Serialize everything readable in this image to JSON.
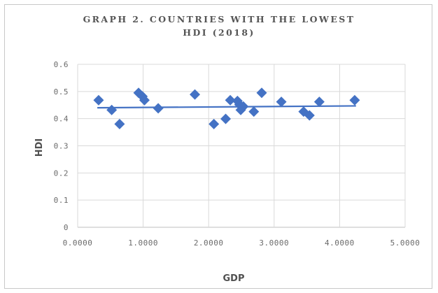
{
  "chart_data": {
    "type": "scatter",
    "title_lines": [
      "GRAPH 2. COUNTRIES WITH THE LOWEST",
      "HDI (2018)"
    ],
    "xlabel": "GDP",
    "ylabel": "HDI",
    "xlim": [
      0,
      5
    ],
    "ylim": [
      0,
      0.6
    ],
    "x_ticks": [
      "0.0000",
      "1.0000",
      "2.0000",
      "3.0000",
      "4.0000",
      "5.0000"
    ],
    "y_ticks": [
      "0",
      "0.1",
      "0.2",
      "0.3",
      "0.4",
      "0.5",
      "0.6"
    ],
    "grid": "horizontal and vertical",
    "marker_color": "#4472c4",
    "trendline": {
      "type": "linear",
      "x0": 0.3,
      "y0": 0.44,
      "x1": 4.25,
      "y1": 0.447
    },
    "points": [
      {
        "x": 0.32,
        "y": 0.468
      },
      {
        "x": 0.52,
        "y": 0.432
      },
      {
        "x": 0.64,
        "y": 0.38
      },
      {
        "x": 0.93,
        "y": 0.495
      },
      {
        "x": 0.99,
        "y": 0.482
      },
      {
        "x": 1.02,
        "y": 0.468
      },
      {
        "x": 1.23,
        "y": 0.438
      },
      {
        "x": 1.79,
        "y": 0.489
      },
      {
        "x": 2.08,
        "y": 0.38
      },
      {
        "x": 2.26,
        "y": 0.399
      },
      {
        "x": 2.33,
        "y": 0.468
      },
      {
        "x": 2.44,
        "y": 0.465
      },
      {
        "x": 2.47,
        "y": 0.452
      },
      {
        "x": 2.49,
        "y": 0.432
      },
      {
        "x": 2.53,
        "y": 0.445
      },
      {
        "x": 2.69,
        "y": 0.426
      },
      {
        "x": 2.81,
        "y": 0.495
      },
      {
        "x": 3.11,
        "y": 0.462
      },
      {
        "x": 3.45,
        "y": 0.426
      },
      {
        "x": 3.54,
        "y": 0.412
      },
      {
        "x": 3.69,
        "y": 0.462
      },
      {
        "x": 4.23,
        "y": 0.468
      }
    ]
  }
}
